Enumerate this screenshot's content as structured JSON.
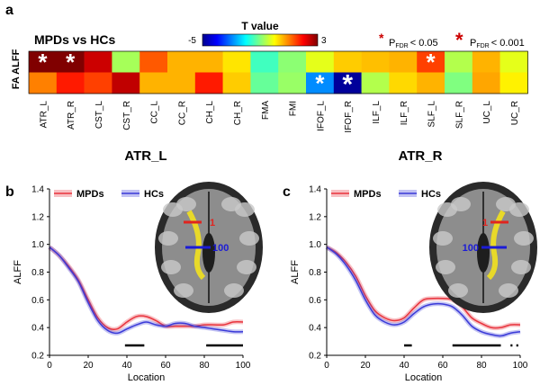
{
  "panels": {
    "a": "a",
    "b": "b",
    "c": "c"
  },
  "heatmap": {
    "comparison_title": "MPDs vs HCs",
    "colorbar": {
      "title": "T value",
      "min_label": "-5",
      "max_label": "3",
      "min": -5,
      "max": 3
    },
    "sig_legend": [
      {
        "star": "*",
        "label": "P",
        "subscript": "FDR",
        "threshold": "< 0.05"
      },
      {
        "star": "*",
        "label": "P",
        "subscript": "FDR",
        "threshold": "< 0.001"
      }
    ],
    "row_labels": [
      "ALFF",
      "FA"
    ],
    "column_labels": [
      "ATR_L",
      "ATR_R",
      "CST_L",
      "CST_R",
      "CC_L",
      "CC_R",
      "CH_L",
      "CH_R",
      "FMA",
      "FMI",
      "IFOF_L",
      "IFOF_R",
      "ILF_L",
      "ILF_R",
      "SLF_L",
      "SLF_R",
      "UC_L",
      "UC_R"
    ],
    "cells": [
      [
        {
          "t": 3.0,
          "sig": "p<0.05"
        },
        {
          "t": 3.0,
          "sig": "p<0.05"
        },
        {
          "t": 2.4,
          "sig": ""
        },
        {
          "t": -0.7,
          "sig": ""
        },
        {
          "t": 1.3,
          "sig": ""
        },
        {
          "t": 0.6,
          "sig": ""
        },
        {
          "t": 0.6,
          "sig": ""
        },
        {
          "t": 0.2,
          "sig": ""
        },
        {
          "t": -1.5,
          "sig": ""
        },
        {
          "t": -0.9,
          "sig": ""
        },
        {
          "t": -0.2,
          "sig": ""
        },
        {
          "t": 0.4,
          "sig": ""
        },
        {
          "t": 0.5,
          "sig": ""
        },
        {
          "t": 0.6,
          "sig": ""
        },
        {
          "t": 1.5,
          "sig": "p<0.05"
        },
        {
          "t": -0.6,
          "sig": ""
        },
        {
          "t": 0.6,
          "sig": ""
        },
        {
          "t": -0.2,
          "sig": ""
        }
      ],
      [
        {
          "t": 1.0,
          "sig": ""
        },
        {
          "t": 1.8,
          "sig": ""
        },
        {
          "t": 1.5,
          "sig": ""
        },
        {
          "t": 2.5,
          "sig": ""
        },
        {
          "t": 0.6,
          "sig": ""
        },
        {
          "t": 0.6,
          "sig": ""
        },
        {
          "t": 1.8,
          "sig": ""
        },
        {
          "t": 0.4,
          "sig": ""
        },
        {
          "t": -1.2,
          "sig": ""
        },
        {
          "t": -0.8,
          "sig": ""
        },
        {
          "t": -2.9,
          "sig": "p<0.05"
        },
        {
          "t": -4.9,
          "sig": "p<0.001"
        },
        {
          "t": -0.6,
          "sig": ""
        },
        {
          "t": 0.3,
          "sig": ""
        },
        {
          "t": 0.6,
          "sig": ""
        },
        {
          "t": -1.0,
          "sig": ""
        },
        {
          "t": 0.7,
          "sig": ""
        },
        {
          "t": 0.1,
          "sig": ""
        }
      ]
    ]
  },
  "line_panel_titles": [
    "ATR_L",
    "ATR_R"
  ],
  "brain_labels": {
    "tract_start": "1",
    "tract_mid": "100"
  },
  "colors": {
    "mpds": "#e8333d",
    "hcs": "#3a3ad8",
    "sig_star": "#cc0000",
    "slice": "#2a2a2a",
    "heatmap_star": "#ffffff"
  },
  "chart_data": [
    {
      "type": "heatmap",
      "title": "MPDs vs HCs",
      "x": [
        "ATR_L",
        "ATR_R",
        "CST_L",
        "CST_R",
        "CC_L",
        "CC_R",
        "CH_L",
        "CH_R",
        "FMA",
        "FMI",
        "IFOF_L",
        "IFOF_R",
        "ILF_L",
        "ILF_R",
        "SLF_L",
        "SLF_R",
        "UC_L",
        "UC_R"
      ],
      "y": [
        "ALFF",
        "FA"
      ],
      "value_range": [
        -5,
        3
      ],
      "colorbar_label": "T value"
    },
    {
      "type": "line",
      "title": "ATR_L",
      "xlabel": "Location",
      "ylabel": "ALFF",
      "xlim": [
        0,
        100
      ],
      "ylim": [
        0.2,
        1.4
      ],
      "xticks": [
        0,
        20,
        40,
        60,
        80,
        100
      ],
      "yticks": [
        0.2,
        0.4,
        0.6,
        0.8,
        1.0,
        1.2,
        1.4
      ],
      "legend": "top-left",
      "x": [
        0,
        5,
        10,
        15,
        20,
        25,
        30,
        35,
        40,
        45,
        50,
        55,
        60,
        65,
        70,
        75,
        80,
        85,
        90,
        95,
        100
      ],
      "series": [
        {
          "name": "MPDs",
          "values": [
            0.98,
            0.92,
            0.84,
            0.74,
            0.6,
            0.47,
            0.4,
            0.39,
            0.44,
            0.48,
            0.48,
            0.45,
            0.41,
            0.41,
            0.41,
            0.41,
            0.42,
            0.42,
            0.42,
            0.44,
            0.44
          ]
        },
        {
          "name": "HCs",
          "values": [
            0.98,
            0.92,
            0.83,
            0.73,
            0.58,
            0.45,
            0.38,
            0.36,
            0.39,
            0.42,
            0.44,
            0.42,
            0.41,
            0.43,
            0.43,
            0.41,
            0.4,
            0.39,
            0.38,
            0.37,
            0.37
          ]
        }
      ],
      "significance_bars": [
        [
          39,
          49
        ],
        [
          81,
          100
        ]
      ]
    },
    {
      "type": "line",
      "title": "ATR_R",
      "xlabel": "Location",
      "ylabel": "ALFF",
      "xlim": [
        0,
        100
      ],
      "ylim": [
        0.2,
        1.4
      ],
      "xticks": [
        0,
        20,
        40,
        60,
        80,
        100
      ],
      "yticks": [
        0.2,
        0.4,
        0.6,
        0.8,
        1.0,
        1.2,
        1.4
      ],
      "legend": "top-left",
      "x": [
        0,
        5,
        10,
        15,
        20,
        25,
        30,
        35,
        40,
        45,
        50,
        55,
        60,
        65,
        70,
        75,
        80,
        85,
        90,
        95,
        100
      ],
      "series": [
        {
          "name": "MPDs",
          "values": [
            0.98,
            0.94,
            0.87,
            0.77,
            0.63,
            0.52,
            0.47,
            0.45,
            0.47,
            0.54,
            0.6,
            0.61,
            0.61,
            0.6,
            0.55,
            0.47,
            0.43,
            0.4,
            0.4,
            0.42,
            0.42
          ]
        },
        {
          "name": "HCs",
          "values": [
            0.98,
            0.93,
            0.85,
            0.74,
            0.6,
            0.49,
            0.44,
            0.42,
            0.44,
            0.5,
            0.55,
            0.57,
            0.57,
            0.55,
            0.49,
            0.41,
            0.37,
            0.35,
            0.34,
            0.36,
            0.37
          ]
        }
      ],
      "significance_bars": [
        [
          40,
          44
        ],
        [
          65,
          90
        ],
        [
          95,
          96
        ],
        [
          98,
          99
        ]
      ]
    }
  ]
}
